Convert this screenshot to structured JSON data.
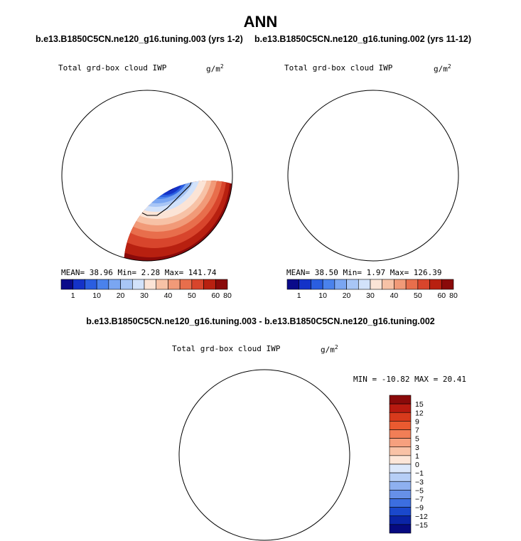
{
  "title": "ANN",
  "variable_label": "Total grd-box cloud IWP",
  "units": "g/m",
  "units_exponent": "2",
  "chart_data": [
    {
      "type": "heatmap",
      "name": "panel-1",
      "case_title": "b.e13.B1850C5CN.ne120_g16.tuning.003 (yrs 1-2)",
      "subtitle_left": "Total grd-box cloud IWP",
      "subtitle_right": "g/m2",
      "stats_text": "MEAN=  38.96  Min=   2.28  Max= 141.74",
      "stats": {
        "mean": 38.96,
        "min": 2.28,
        "max": 141.74
      },
      "colorbar_levels": [
        "1",
        "10",
        "20",
        "30",
        "40",
        "50",
        "60",
        "80"
      ],
      "colorbar_colors": [
        "#0a0a8a",
        "#1432c8",
        "#2a5ee0",
        "#4a82ec",
        "#7aa6f2",
        "#a8c6f6",
        "#d2e2fa",
        "#fbe4d6",
        "#f7c2a6",
        "#f19a78",
        "#e86e4c",
        "#d8452c",
        "#b82010",
        "#8a0a0a"
      ]
    },
    {
      "type": "heatmap",
      "name": "panel-2",
      "case_title": "b.e13.B1850C5CN.ne120_g16.tuning.002 (yrs 11-12)",
      "subtitle_left": "Total grd-box cloud IWP",
      "subtitle_right": "g/m2",
      "stats_text": "MEAN=  38.50  Min=   1.97  Max= 126.39",
      "stats": {
        "mean": 38.5,
        "min": 1.97,
        "max": 126.39
      },
      "colorbar_levels": [
        "1",
        "10",
        "20",
        "30",
        "40",
        "50",
        "60",
        "80"
      ],
      "colorbar_colors": [
        "#0a0a8a",
        "#1432c8",
        "#2a5ee0",
        "#4a82ec",
        "#7aa6f2",
        "#a8c6f6",
        "#d2e2fa",
        "#fbe4d6",
        "#f7c2a6",
        "#f19a78",
        "#e86e4c",
        "#d8452c",
        "#b82010",
        "#8a0a0a"
      ]
    },
    {
      "type": "heatmap",
      "name": "difference-panel",
      "case_title": "b.e13.B1850C5CN.ne120_g16.tuning.003 - b.e13.B1850C5CN.ne120_g16.tuning.002",
      "subtitle_left": "Total grd-box cloud IWP",
      "subtitle_right": "g/m2",
      "stats_text": "MIN = -10.82 MAX =  20.41",
      "stats": {
        "min": -10.82,
        "max": 20.41
      },
      "colorbar_levels": [
        "15",
        "12",
        "9",
        "7",
        "5",
        "3",
        "1",
        "0",
        "−1",
        "−3",
        "−5",
        "−7",
        "−9",
        "−12",
        "−15"
      ],
      "colorbar_colors": [
        "#8a0a0a",
        "#b81a10",
        "#d83a1c",
        "#ea5a30",
        "#f27e56",
        "#f6a07e",
        "#f9c2a6",
        "#fde6d8",
        "#dce8fb",
        "#b6cef6",
        "#8eb0f0",
        "#6690e8",
        "#3c6ee0",
        "#1a48cc",
        "#0a24a6",
        "#060a80"
      ]
    }
  ]
}
